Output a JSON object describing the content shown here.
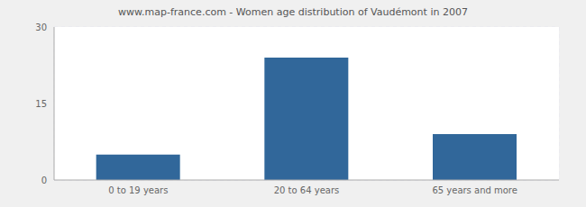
{
  "chart_data": {
    "type": "bar",
    "title": "www.map-france.com - Women age distribution of Vaudémont in 2007",
    "categories": [
      "0 to 19 years",
      "20 to 64 years",
      "65 years and more"
    ],
    "values": [
      5,
      24,
      9
    ],
    "color": "#31679a",
    "ylim": [
      0,
      30
    ],
    "yticks": [
      0,
      15,
      30
    ],
    "grid": true
  }
}
